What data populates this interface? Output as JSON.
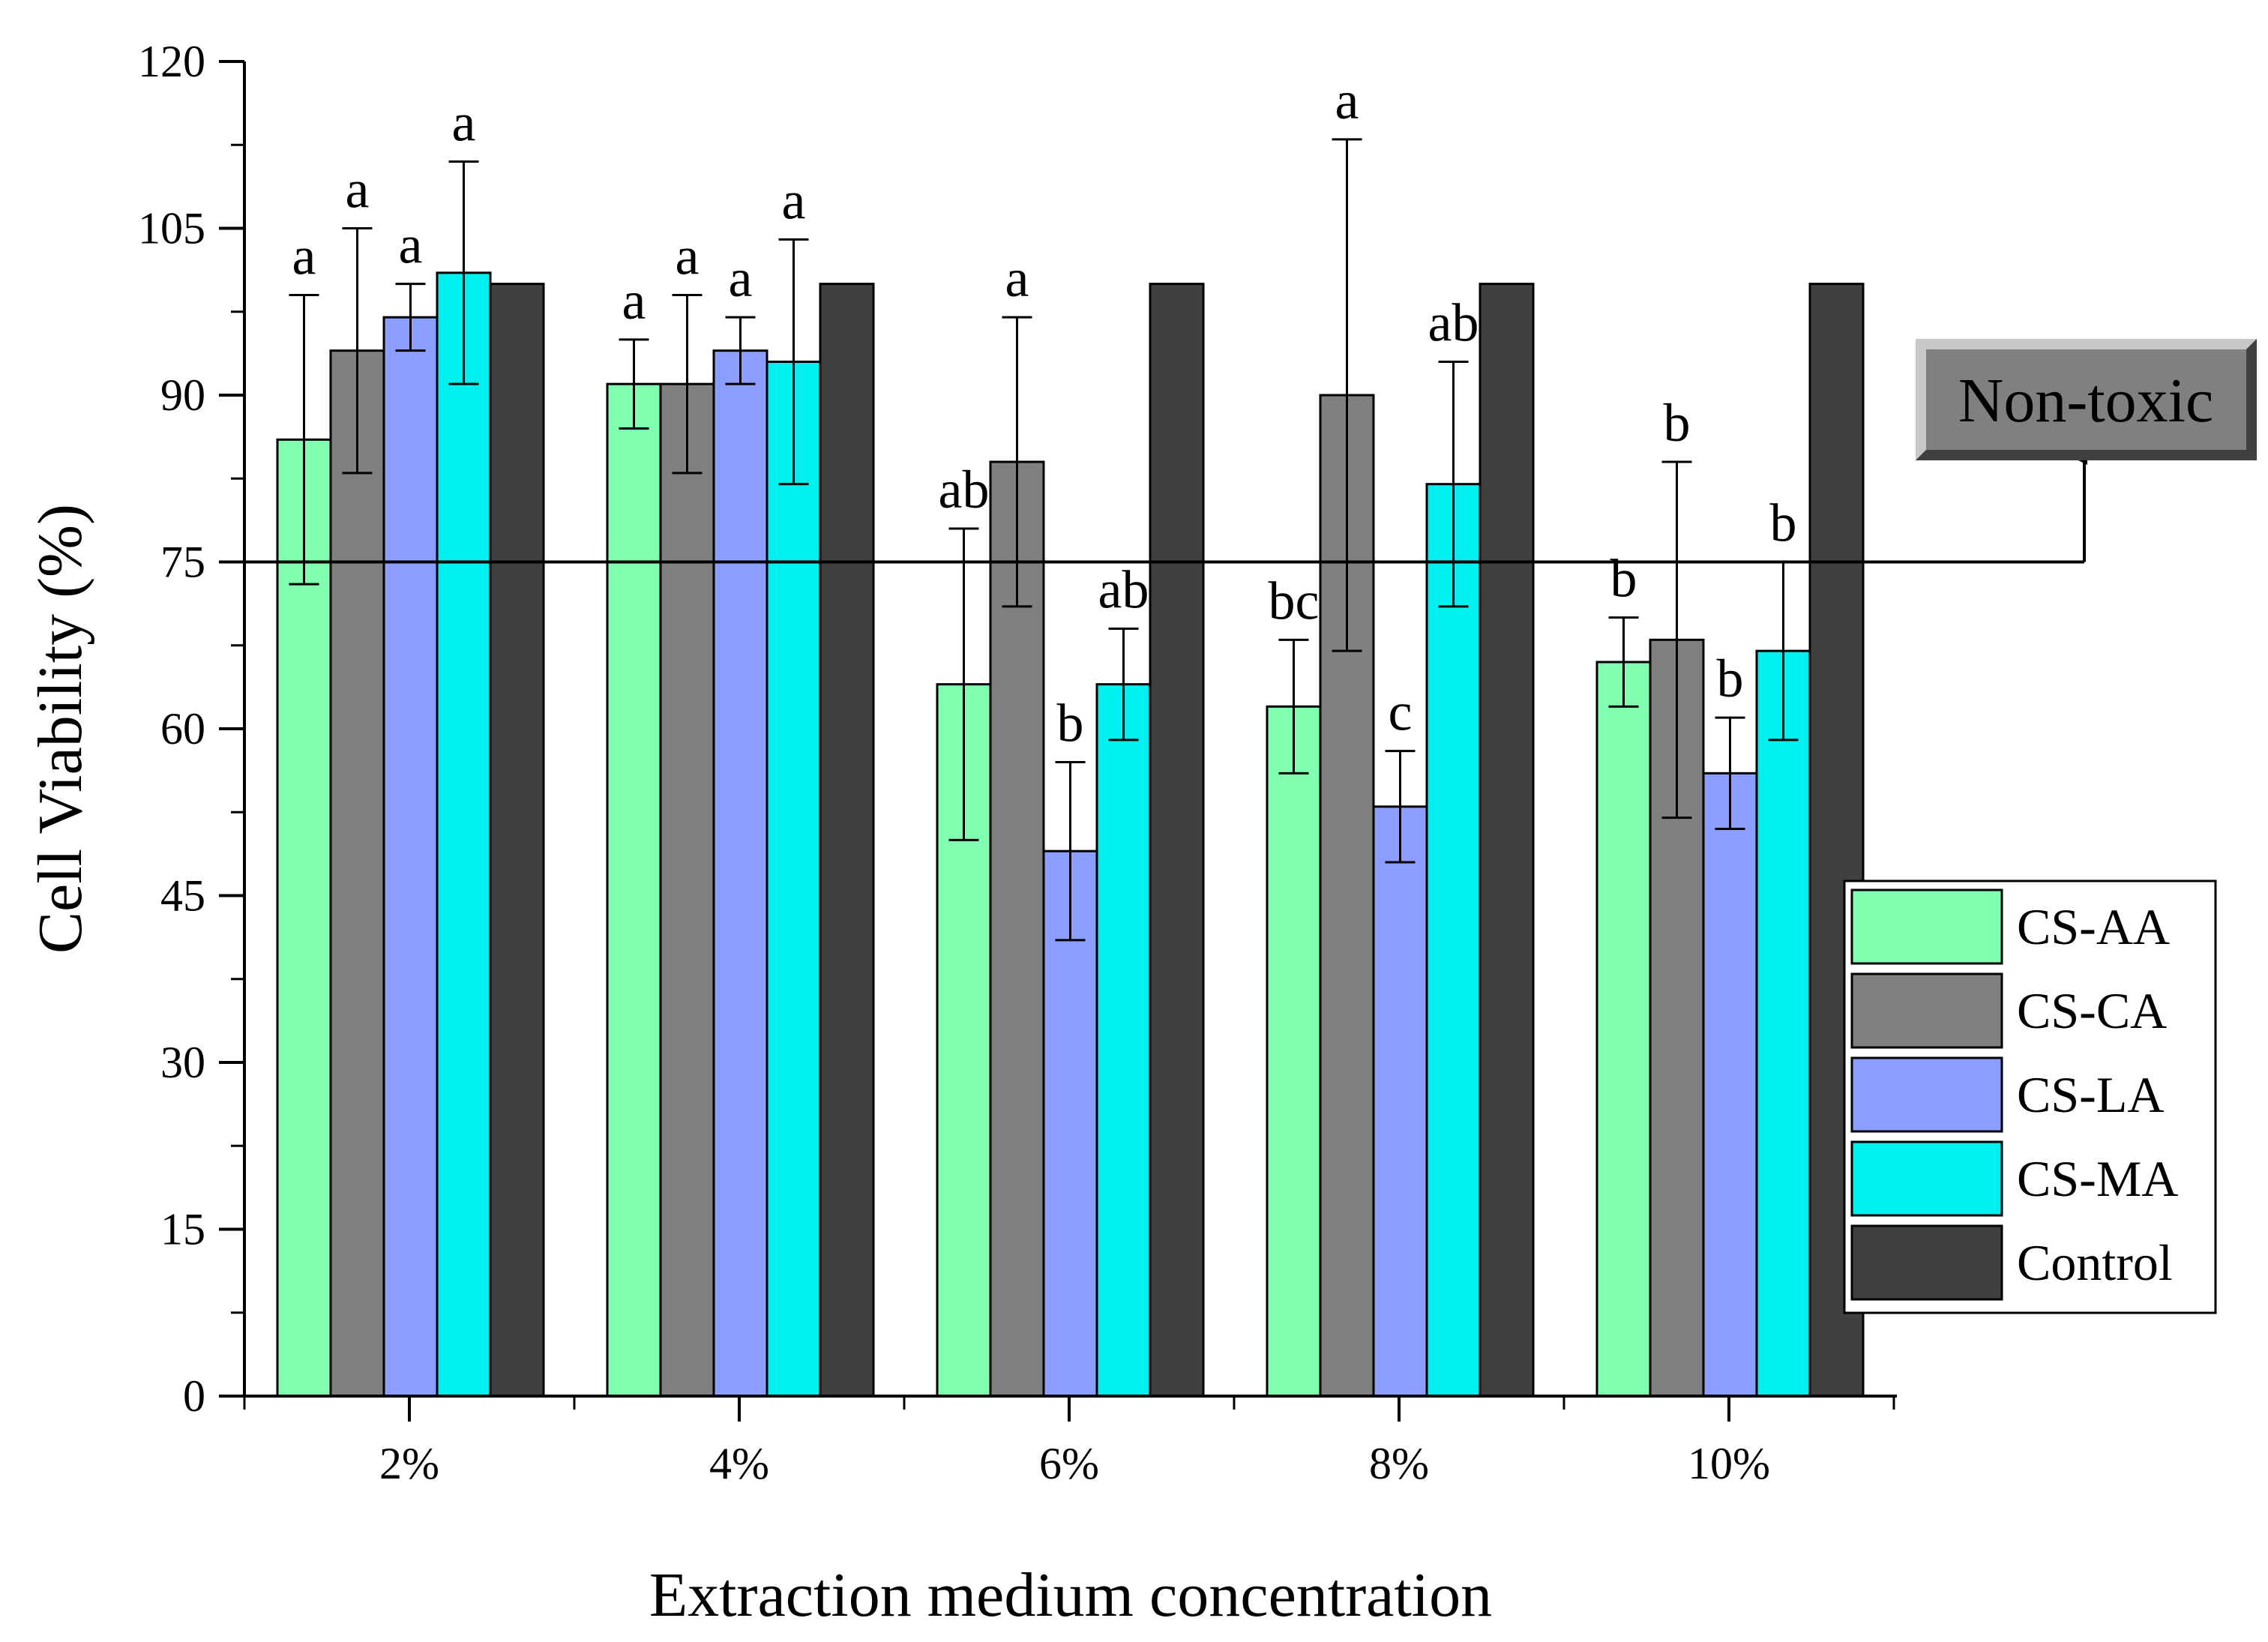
{
  "chart_data": {
    "type": "bar",
    "title": "",
    "xlabel": "Extraction medium concentration",
    "ylabel": "Cell Viability (%)",
    "ylim": [
      0,
      120
    ],
    "yticks": [
      0,
      15,
      30,
      45,
      60,
      75,
      90,
      105,
      120
    ],
    "categories": [
      "2%",
      "4%",
      "6%",
      "8%",
      "10%"
    ],
    "series": [
      {
        "name": "CS-AA",
        "color": "#80FFB0",
        "values": [
          86,
          91,
          64,
          62,
          66
        ],
        "errors": [
          13,
          4,
          14,
          6,
          4
        ],
        "labels": [
          "a",
          "a",
          "ab",
          "bc",
          "b"
        ]
      },
      {
        "name": "CS-CA",
        "color": "#808080",
        "values": [
          94,
          91,
          84,
          90,
          68
        ],
        "errors": [
          11,
          8,
          13,
          23,
          16
        ],
        "labels": [
          "a",
          "a",
          "a",
          "a",
          "b"
        ]
      },
      {
        "name": "CS-LA",
        "color": "#8C9EFF",
        "values": [
          97,
          94,
          49,
          53,
          56
        ],
        "errors": [
          3,
          3,
          8,
          5,
          5
        ],
        "labels": [
          "a",
          "a",
          "b",
          "c",
          "b"
        ]
      },
      {
        "name": "CS-MA",
        "color": "#00F0F0",
        "values": [
          101,
          93,
          64,
          82,
          67
        ],
        "errors": [
          10,
          11,
          5,
          11,
          8
        ],
        "labels": [
          "a",
          "a",
          "ab",
          "ab",
          "b"
        ]
      },
      {
        "name": "Control",
        "color": "#404040",
        "values": [
          100,
          100,
          100,
          100,
          100
        ],
        "errors": [
          0,
          0,
          0,
          0,
          0
        ],
        "labels": [
          "",
          "",
          "",
          "",
          ""
        ]
      }
    ],
    "threshold": {
      "value": 75,
      "label": "Non-toxic"
    },
    "legend": {
      "position": "bottom-right"
    }
  }
}
